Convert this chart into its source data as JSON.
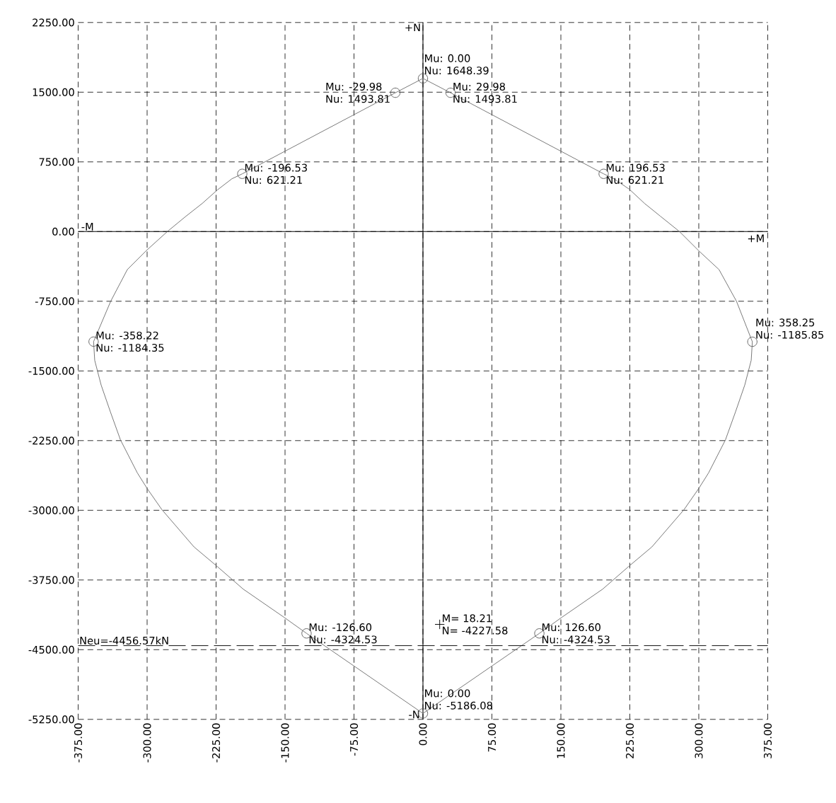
{
  "chart_data": {
    "type": "line",
    "xlim": [
      -375,
      375
    ],
    "ylim": [
      -5250,
      2250
    ],
    "xticks": [
      {
        "value": -375,
        "label": "-375.00"
      },
      {
        "value": -300,
        "label": "-300.00"
      },
      {
        "value": -225,
        "label": "-225.00"
      },
      {
        "value": -150,
        "label": "-150.00"
      },
      {
        "value": -75,
        "label": "-75.00"
      },
      {
        "value": 0,
        "label": "0.00"
      },
      {
        "value": 75,
        "label": "75.00"
      },
      {
        "value": 150,
        "label": "150.00"
      },
      {
        "value": 225,
        "label": "225.00"
      },
      {
        "value": 300,
        "label": "300.00"
      },
      {
        "value": 375,
        "label": "375.00"
      }
    ],
    "yticks": [
      {
        "value": 2250,
        "label": "2250.00"
      },
      {
        "value": 1500,
        "label": "1500.00"
      },
      {
        "value": 750,
        "label": "750.00"
      },
      {
        "value": 0,
        "label": "0.00"
      },
      {
        "value": -750,
        "label": "-750.00"
      },
      {
        "value": -1500,
        "label": "-1500.00"
      },
      {
        "value": -2250,
        "label": "-2250.00"
      },
      {
        "value": -3000,
        "label": "-3000.00"
      },
      {
        "value": -3750,
        "label": "-3750.00"
      },
      {
        "value": -4500,
        "label": "-4500.00"
      },
      {
        "value": -5250,
        "label": "-5250.00"
      }
    ],
    "grid": true,
    "ref_lines": [
      {
        "axis": "y",
        "value": -4456.57,
        "label": "Neu=-4456.57kN",
        "color": "#000000",
        "line_style": "dashed"
      }
    ],
    "series": [
      {
        "color": "#707070",
        "marker": "none",
        "x": [
          0,
          -29.98,
          -196.53,
          -207.8,
          -223.7,
          -240,
          -258.5,
          -278,
          -300,
          -321.5,
          -339.6,
          -358.22
        ],
        "values": [
          1648.39,
          1493.81,
          621.21,
          568,
          447,
          303,
          159,
          0,
          -197,
          -409,
          -750,
          -1184.35
        ]
      },
      {
        "color": "#707070",
        "marker": "none",
        "x": [
          -358.22,
          -357,
          -350,
          -340,
          -329,
          -310.6,
          -300,
          -284,
          -249,
          -224.5,
          -195.5,
          -151,
          -126.6,
          0
        ],
        "values": [
          -1184.35,
          -1386,
          -1652,
          -1939,
          -2242,
          -2598,
          -2765,
          -2992,
          -3394,
          -3598,
          -3848,
          -4152,
          -4324.53,
          -5186.08
        ]
      },
      {
        "color": "#707070",
        "marker": "none",
        "x": [
          0,
          126.6,
          151,
          195.5,
          224.5,
          249,
          284,
          300,
          310.6,
          329,
          340,
          350,
          357,
          358.25
        ],
        "values": [
          -5186.08,
          -4324.53,
          -4152,
          -3848,
          -3598,
          -3394,
          -2992,
          -2765,
          -2598,
          -2242,
          -1939,
          -1652,
          -1386,
          -1185.85
        ]
      },
      {
        "color": "#707070",
        "marker": "none",
        "x": [
          358.25,
          341,
          322,
          300.5,
          279,
          258,
          241,
          224.5,
          207.8,
          196.53,
          29.98,
          0
        ],
        "values": [
          -1185.85,
          -750,
          -409,
          -212,
          0,
          167,
          303,
          455,
          568,
          621.21,
          1493.81,
          1648.39
        ]
      },
      {
        "type": "scatter",
        "color": "#5a5a5a",
        "marker": "circle",
        "x": [
          0,
          -29.98,
          29.98,
          -196.53,
          196.53,
          -358.22,
          358.25,
          -126.6,
          126.6,
          0
        ],
        "values": [
          1648.39,
          1493.81,
          1493.81,
          621.21,
          621.21,
          -1184.35,
          -1185.85,
          -4324.53,
          -4324.53,
          -5186.08
        ]
      },
      {
        "type": "scatter",
        "color": "#000000",
        "marker": "cross",
        "x": [
          18.21
        ],
        "values": [
          -4227.58
        ]
      }
    ],
    "annotations": [
      {
        "text": "Mu: 0.00",
        "x": 0,
        "y": 1648.39
      },
      {
        "text": "Nu: 1648.39",
        "x": 0,
        "y": 1648.39
      },
      {
        "text": "Mu: -29.98",
        "x": -29.98,
        "y": 1493.81
      },
      {
        "text": "Nu: 1493.81",
        "x": -29.98,
        "y": 1493.81
      },
      {
        "text": "Mu: 29.98",
        "x": 29.98,
        "y": 1493.81
      },
      {
        "text": "Nu: 1493.81",
        "x": 29.98,
        "y": 1493.81
      },
      {
        "text": "Mu: -196.53",
        "x": -196.53,
        "y": 621.21
      },
      {
        "text": "Nu: 621.21",
        "x": -196.53,
        "y": 621.21
      },
      {
        "text": "Mu: 196.53",
        "x": 196.53,
        "y": 621.21
      },
      {
        "text": "Nu: 621.21",
        "x": 196.53,
        "y": 621.21
      },
      {
        "text": "Mu: -358.22",
        "x": -358.22,
        "y": -1184.35
      },
      {
        "text": "Nu: -1184.35",
        "x": -358.22,
        "y": -1184.35
      },
      {
        "text": "Mu: 358.25",
        "x": 358.25,
        "y": -1185.85
      },
      {
        "text": "Nu: -1185.85",
        "x": 358.25,
        "y": -1185.85
      },
      {
        "text": "Mu: -126.60",
        "x": -126.6,
        "y": -4324.53
      },
      {
        "text": "Nu: -4324.53",
        "x": -126.6,
        "y": -4324.53
      },
      {
        "text": "Mu: 126.60",
        "x": 126.6,
        "y": -4324.53
      },
      {
        "text": "Nu: -4324.53",
        "x": 126.6,
        "y": -4324.53
      },
      {
        "text": "Mu: 0.00",
        "x": 0,
        "y": -5186.08
      },
      {
        "text": "Nu: -5186.08",
        "x": 0,
        "y": -5186.08
      },
      {
        "text": "M= 18.21",
        "x": 18.21,
        "y": -4227.58
      },
      {
        "text": "N= -4227.58",
        "x": 18.21,
        "y": -4227.58
      },
      "+N",
      "-N",
      "-M",
      "+M"
    ]
  }
}
